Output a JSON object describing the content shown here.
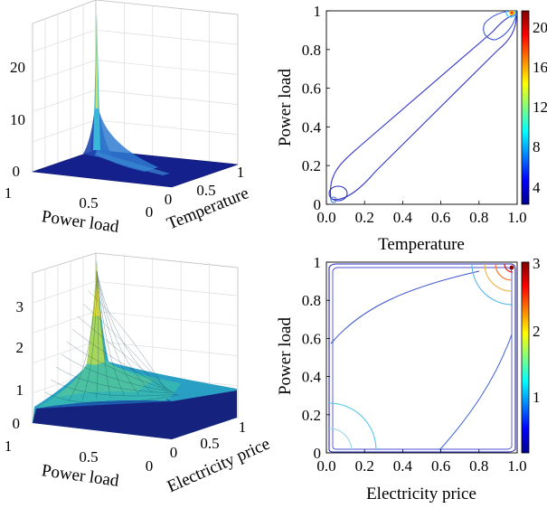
{
  "chart_data": [
    {
      "type": "surface",
      "x_axis": {
        "label": "Power load",
        "range": [
          0,
          1
        ],
        "ticks": [
          "1",
          "0.5",
          "0"
        ]
      },
      "y_axis": {
        "label": "Temperature",
        "range": [
          0,
          1
        ],
        "ticks": [
          "0",
          "0.5",
          "1"
        ]
      },
      "z_axis": {
        "range": [
          0,
          25
        ],
        "ticks": [
          "0",
          "10",
          "20"
        ]
      },
      "peak": {
        "x": 1,
        "y": 1,
        "z": 25
      },
      "colormap": "jet",
      "grid": true
    },
    {
      "type": "contour",
      "x_axis": {
        "label": "Temperature",
        "range": [
          0,
          1
        ],
        "ticks": [
          "0.0",
          "0.2",
          "0.4",
          "0.6",
          "0.8",
          "1.0"
        ]
      },
      "y_axis": {
        "label": "Power load",
        "range": [
          0,
          1
        ],
        "ticks": [
          "0",
          "0.2",
          "0.4",
          "0.6",
          "0.8",
          "1"
        ]
      },
      "colorbar": {
        "range": [
          2,
          21
        ],
        "ticks": [
          "4",
          "8",
          "12",
          "16",
          "20"
        ],
        "colormap": "jet"
      },
      "peak": {
        "x": 0.97,
        "y": 0.97
      }
    },
    {
      "type": "surface",
      "x_axis": {
        "label": "Power load",
        "range": [
          0,
          1
        ],
        "ticks": [
          "1",
          "0.5",
          "0"
        ]
      },
      "y_axis": {
        "label": "Electricity price",
        "range": [
          0,
          1
        ],
        "ticks": [
          "0",
          "0.5",
          "1"
        ]
      },
      "z_axis": {
        "range": [
          0,
          3.5
        ],
        "ticks": [
          "0",
          "1",
          "2",
          "3"
        ]
      },
      "peak": {
        "x": 1,
        "y": 1,
        "z": 3.5
      },
      "colormap": "jet",
      "grid": true
    },
    {
      "type": "contour",
      "x_axis": {
        "label": "Electricity price",
        "range": [
          0,
          1
        ],
        "ticks": [
          "0.0",
          "0.2",
          "0.4",
          "0.6",
          "0.8",
          "1.0"
        ]
      },
      "y_axis": {
        "label": "Power load",
        "range": [
          0,
          1
        ],
        "ticks": [
          "0",
          "0.2",
          "0.4",
          "0.6",
          "0.8",
          "1"
        ]
      },
      "colorbar": {
        "range": [
          0.1,
          3
        ],
        "ticks": [
          "1",
          "2",
          "3"
        ],
        "colormap": "jet"
      },
      "peak": {
        "x": 0.98,
        "y": 0.98
      }
    }
  ]
}
